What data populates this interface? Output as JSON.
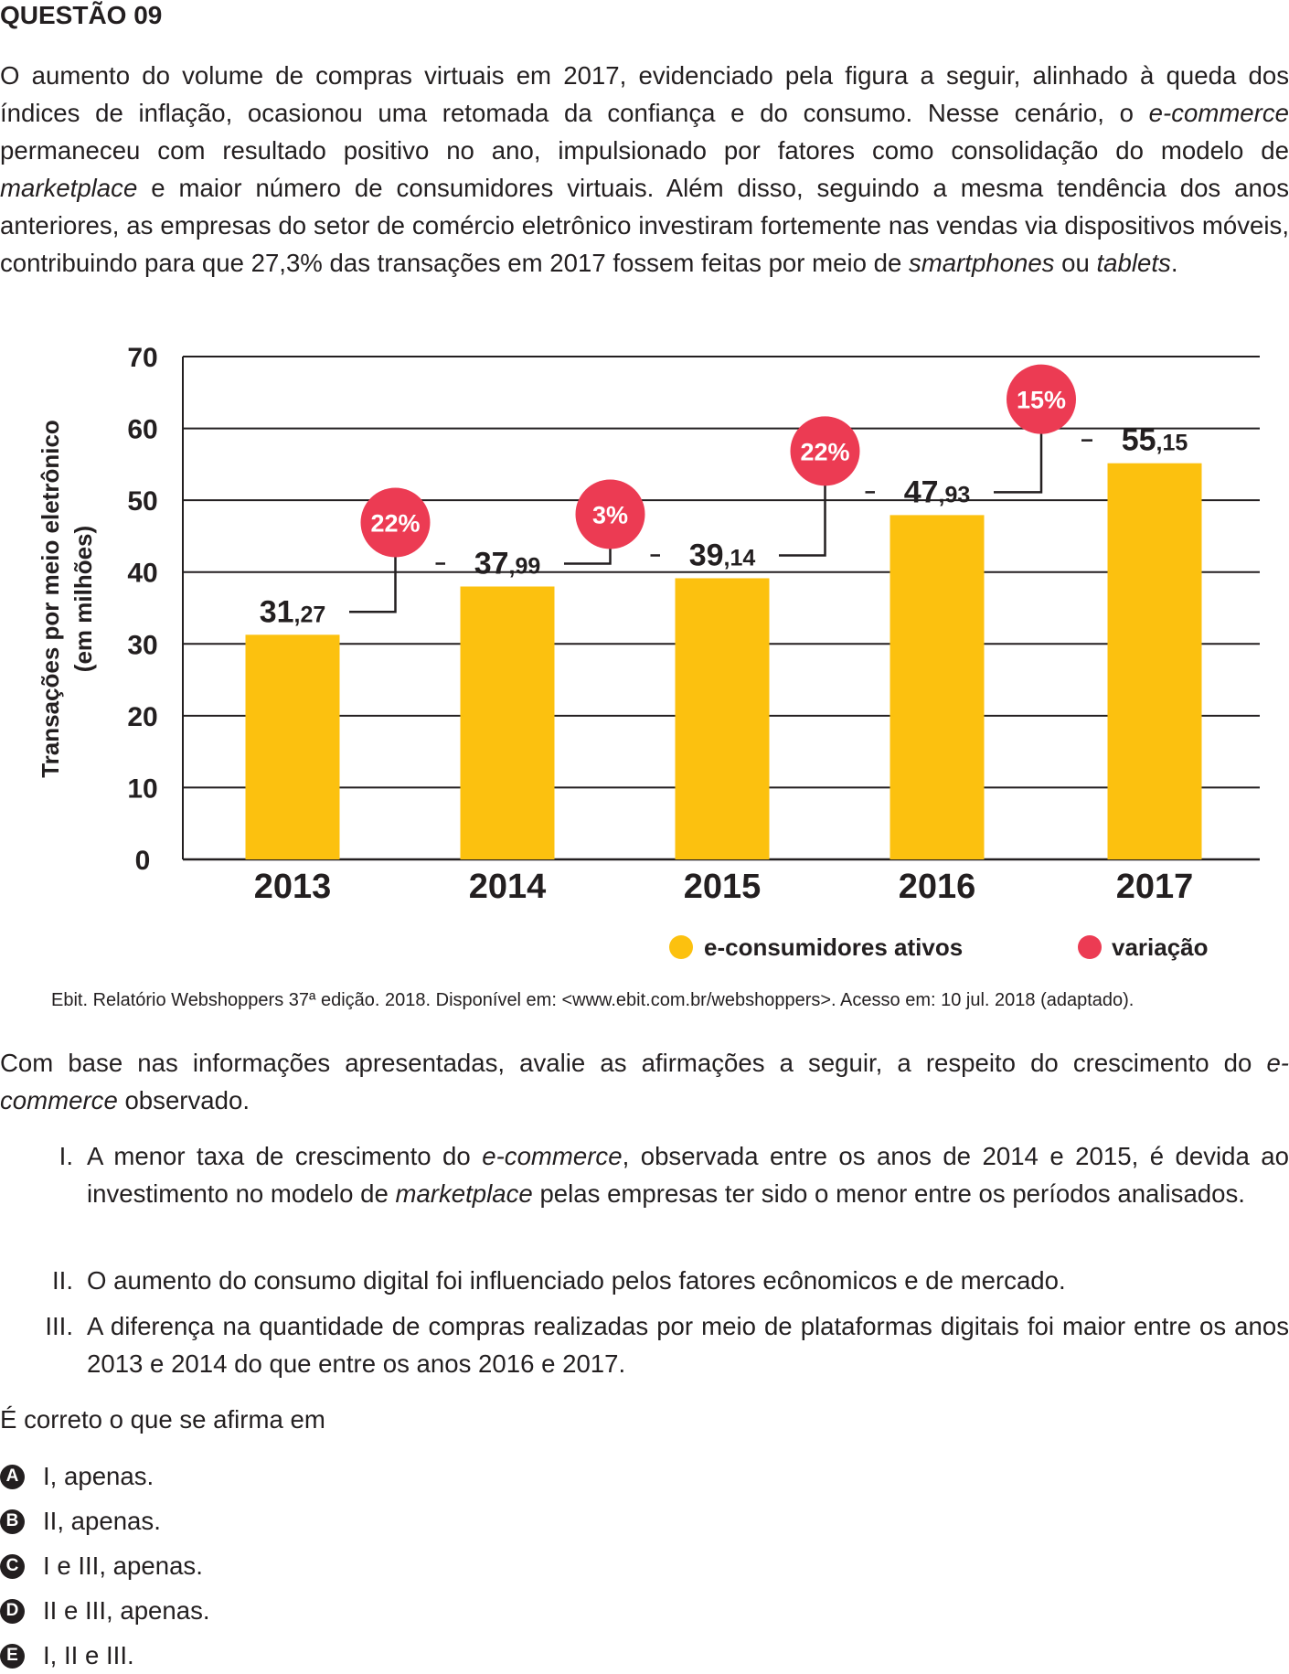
{
  "question_title": "QUESTÃO 09",
  "intro_html": "O aumento do volume de compras virtuais em 2017, evidenciado pela figura a seguir, alinhado à queda dos índices de inflação, ocasionou uma retomada da confiança e do consumo. Nesse cenário, o <i>e-commerce</i> permaneceu com resultado positivo no ano, impulsionado por fatores como consolidação do modelo de <i>marketplace</i> e maior número de consumidores virtuais. Além disso, seguindo a mesma tendência dos anos anteriores, as empresas do setor de comércio eletrônico investiram fortemente nas vendas via dispositivos móveis, contribuindo para que 27,3% das transações em 2017 fossem feitas por meio de <i>smartphones</i> ou <i>tablets</i>.",
  "chart_data": {
    "type": "bar",
    "categories": [
      "2013",
      "2014",
      "2015",
      "2016",
      "2017"
    ],
    "values": [
      31.27,
      37.99,
      39.14,
      47.93,
      55.15
    ],
    "value_labels": [
      {
        "int": "31",
        "dec": ",27"
      },
      {
        "int": "37",
        "dec": ",99"
      },
      {
        "int": "39",
        "dec": ",14"
      },
      {
        "int": "47",
        "dec": ",93"
      },
      {
        "int": "55",
        "dec": ",15"
      }
    ],
    "variation": [
      "22%",
      "3%",
      "22%",
      "15%"
    ],
    "ylabel_line1": "Transações por meio eletrônico",
    "ylabel_line2": "(em milhões)",
    "ylim": [
      0,
      70
    ],
    "yticks": [
      0,
      10,
      20,
      30,
      40,
      50,
      60,
      70
    ],
    "grid": true,
    "legend": [
      {
        "label": "e-consumidores ativos",
        "color": "#fcc10f"
      },
      {
        "label": "variação",
        "color": "#ec3b53"
      }
    ],
    "legend_position": "bottom-right",
    "bar_color": "#fcc10f",
    "variation_color": "#ec3b53"
  },
  "source": "Ebit. Relatório Webshoppers 37ª edição. 2018. Disponível em: <www.ebit.com.br/webshoppers>. Acesso em: 10 jul. 2018 (adaptado).",
  "prompt_html": "Com base nas informações apresentadas, avalie as afirmações a seguir, a respeito do crescimento do <i>e-commerce</i> observado.",
  "statements": [
    {
      "num": "I.",
      "html": "A menor taxa de crescimento do <i>e-commerce</i>, observada entre os anos de 2014 e 2015, é devida ao investimento no modelo de <i>marketplace</i> pelas empresas ter sido o menor entre os períodos analisados."
    },
    {
      "num": "II.",
      "html": "O aumento do consumo digital foi influenciado pelos fatores ecônomicos e de mercado."
    },
    {
      "num": "III.",
      "html": "A diferença na quantidade de compras realizadas por meio de plataformas digitais foi maior entre os anos 2013 e 2014 do que entre os anos 2016 e 2017."
    }
  ],
  "question": "É correto o que se afirma em",
  "options": [
    {
      "letter": "A",
      "text": "I, apenas."
    },
    {
      "letter": "B",
      "text": "II, apenas."
    },
    {
      "letter": "C",
      "text": "I e III, apenas."
    },
    {
      "letter": "D",
      "text": "II e III, apenas."
    },
    {
      "letter": "E",
      "text": "I, II e III."
    }
  ]
}
